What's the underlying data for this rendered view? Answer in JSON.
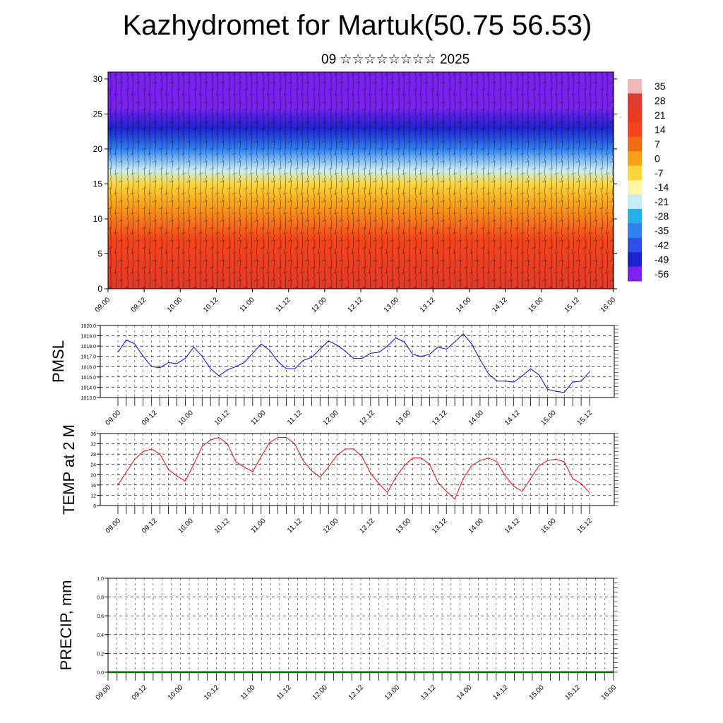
{
  "title": "Kazhydromet for Martuk(50.75 56.53)",
  "subtitle": "09 ☆☆☆☆☆☆☆☆ 2025",
  "time_labels": [
    "09.00",
    "09.12",
    "10.00",
    "10.12",
    "11.00",
    "11.12",
    "12.00",
    "12.12",
    "13.00",
    "13.12",
    "14.00",
    "14.12",
    "15.00",
    "15.12",
    "16.00"
  ],
  "chart_data": [
    {
      "type": "heatmap",
      "title": "",
      "xlabel": "",
      "ylabel": "",
      "ylim": [
        0,
        31
      ],
      "yticks": [
        0,
        5,
        10,
        15,
        20,
        25,
        30
      ],
      "colorbar": {
        "labels": [
          "35",
          "28",
          "21",
          "14",
          "7",
          "0",
          "-7",
          "-14",
          "-21",
          "-28",
          "-35",
          "-42",
          "-49",
          "-56"
        ],
        "colors": [
          "#f0b8b8",
          "#e23a2c",
          "#ec3a22",
          "#f5441c",
          "#f36b12",
          "#f8a01a",
          "#fbd63a",
          "#fff6a8",
          "#c8ecf6",
          "#26b0ea",
          "#2f80f0",
          "#2f4fe6",
          "#1f22cf",
          "#7b22ee"
        ]
      },
      "profile": [
        {
          "height": 0,
          "value": 28
        },
        {
          "height": 7,
          "value": 14
        },
        {
          "height": 12,
          "value": 0
        },
        {
          "height": 15,
          "value": -10
        },
        {
          "height": 17,
          "value": -20
        },
        {
          "height": 20,
          "value": -35
        },
        {
          "height": 23,
          "value": -48
        },
        {
          "height": 26,
          "value": -53
        },
        {
          "height": 31,
          "value": -56
        }
      ]
    },
    {
      "type": "line",
      "ylabel": "PMSL",
      "ylim": [
        1013.0,
        1020.0
      ],
      "yticks": [
        "1013.0",
        "1014.0",
        "1015.0",
        "1016.0",
        "1017.0",
        "1018.0",
        "1019.0",
        "1020.0"
      ],
      "series": [
        {
          "color": "#0000ff",
          "values": [
            1017.4,
            1018.6,
            1018.2,
            1017.0,
            1016.0,
            1015.9,
            1016.4,
            1016.3,
            1016.8,
            1017.9,
            1017.0,
            1015.8,
            1015.1,
            1015.7,
            1016.0,
            1016.4,
            1017.3,
            1018.2,
            1017.6,
            1016.5,
            1015.8,
            1015.8,
            1016.6,
            1016.9,
            1017.7,
            1018.5,
            1018.1,
            1017.5,
            1016.8,
            1016.8,
            1017.3,
            1017.4,
            1018.0,
            1018.8,
            1018.4,
            1017.2,
            1017.0,
            1017.2,
            1017.9,
            1017.7,
            1018.4,
            1019.2,
            1018.2,
            1016.7,
            1015.3,
            1014.6,
            1014.6,
            1014.5,
            1015.1,
            1015.8,
            1015.2,
            1013.8,
            1013.6,
            1013.5,
            1014.5,
            1014.6,
            1015.5
          ]
        }
      ]
    },
    {
      "type": "line",
      "ylabel": "TEMP at 2 M",
      "ylim": [
        8,
        36
      ],
      "yticks": [
        "8",
        "12",
        "16",
        "20",
        "24",
        "28",
        "32",
        "36"
      ],
      "series": [
        {
          "color": "#ff0000",
          "values": [
            16,
            21,
            26,
            29,
            30,
            28,
            22,
            19.5,
            17.5,
            24,
            31,
            33.5,
            34.5,
            32,
            25,
            23,
            21.2,
            27,
            32.5,
            34.5,
            34.5,
            32,
            25.5,
            21.5,
            19,
            23,
            27.5,
            30,
            30,
            27,
            20.5,
            16.5,
            13,
            19,
            23.5,
            26.5,
            26.5,
            24,
            17,
            13.5,
            10.5,
            18.5,
            23.5,
            25.5,
            26.5,
            25,
            19.5,
            15.5,
            13.5,
            18.5,
            23.5,
            25.5,
            26,
            25,
            18.5,
            16.5,
            13
          ]
        }
      ]
    },
    {
      "type": "line",
      "ylabel": "PRECIP, mm",
      "ylim": [
        0.0,
        1.0
      ],
      "yticks": [
        "0.0",
        "0.2",
        "0.4",
        "0.6",
        "0.8",
        "1.0"
      ],
      "series": [
        {
          "color": "#006400",
          "values": [
            0,
            0,
            0,
            0,
            0,
            0,
            0,
            0,
            0,
            0,
            0,
            0,
            0,
            0,
            0,
            0,
            0,
            0,
            0,
            0,
            0,
            0,
            0,
            0,
            0,
            0,
            0,
            0,
            0,
            0,
            0,
            0,
            0,
            0,
            0,
            0,
            0,
            0,
            0,
            0,
            0,
            0,
            0,
            0,
            0,
            0,
            0,
            0,
            0,
            0,
            0,
            0,
            0,
            0,
            0,
            0,
            0
          ]
        }
      ]
    }
  ]
}
